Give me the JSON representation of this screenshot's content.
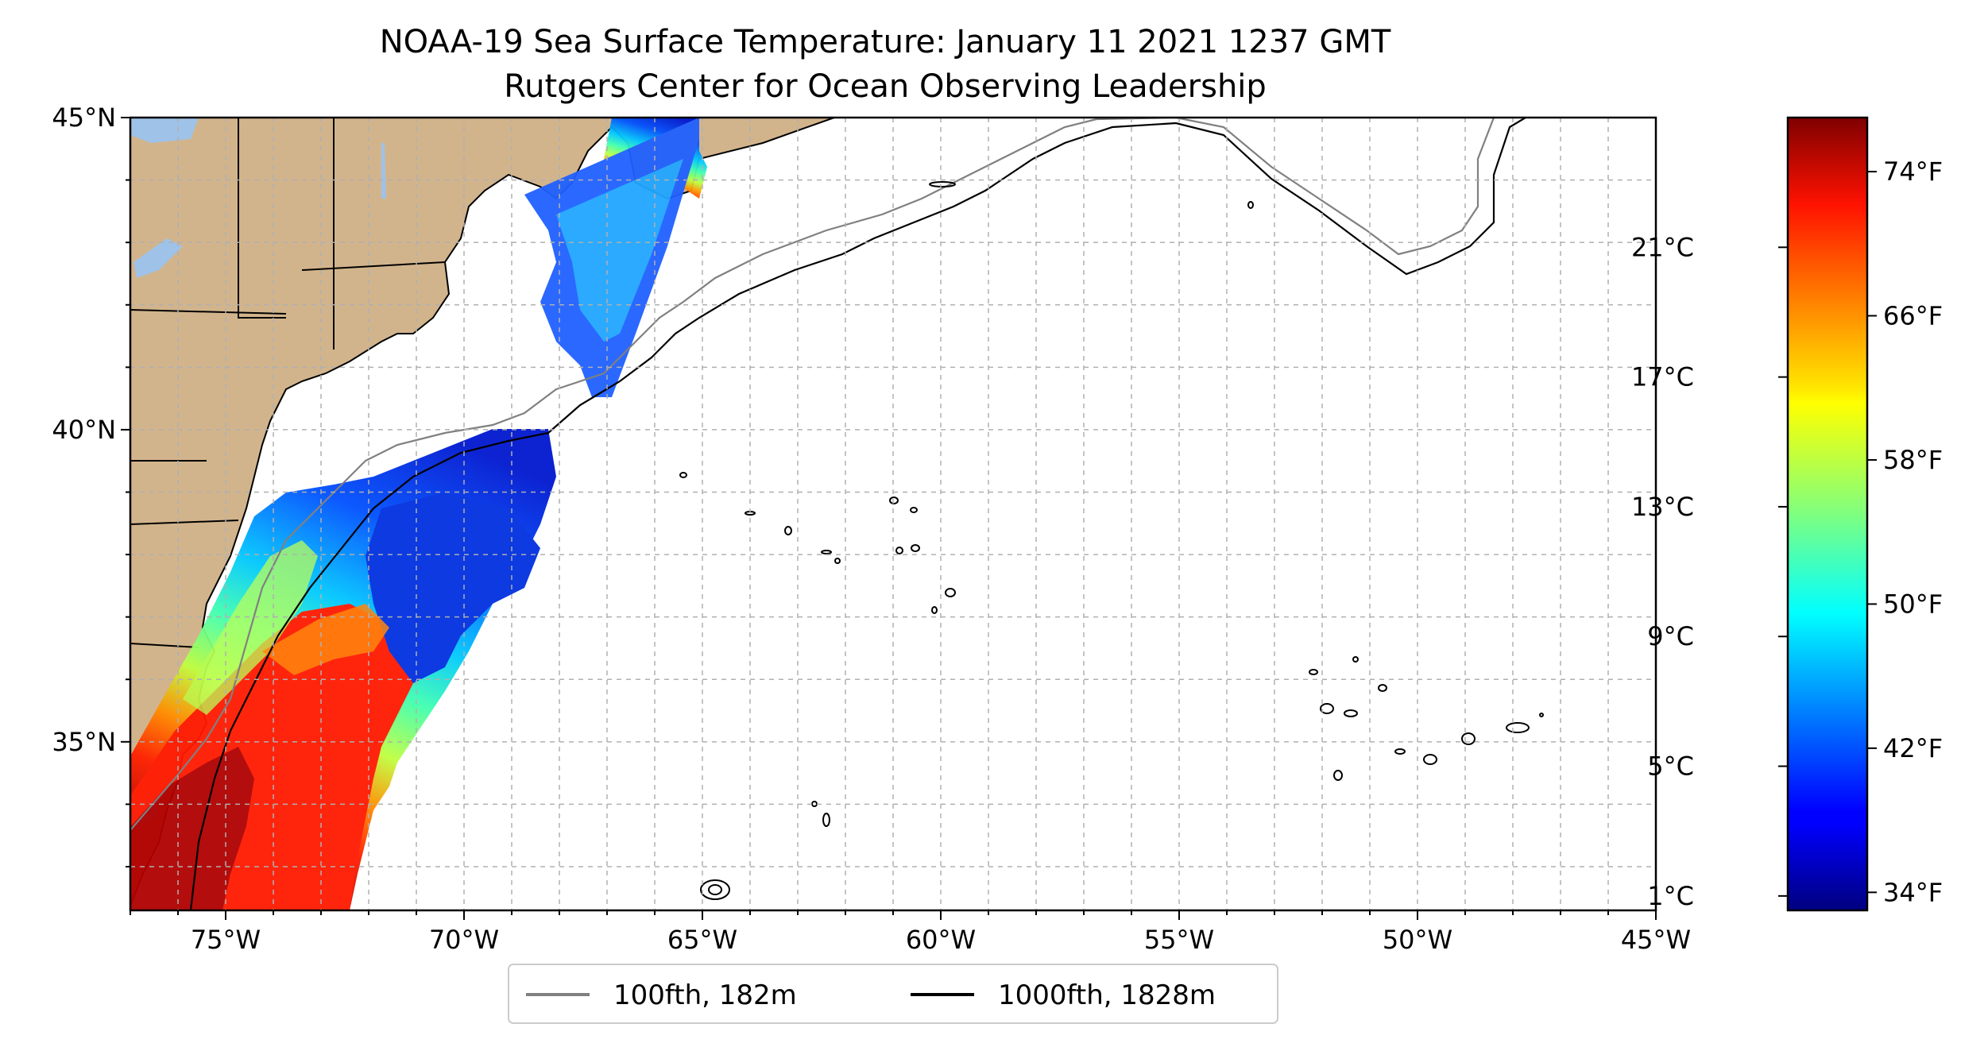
{
  "title": {
    "line1": "NOAA-19 Sea Surface Temperature: January 11 2021 1237 GMT",
    "line2": "Rutgers Center for Ocean Observing Leadership"
  },
  "map": {
    "extent": {
      "lon_min": -77,
      "lon_max": -45,
      "lat_min": 32.3,
      "lat_max": 45
    },
    "lat_ticks": [
      {
        "value": 45,
        "label": "45°N"
      },
      {
        "value": 40,
        "label": "40°N"
      },
      {
        "value": 35,
        "label": "35°N"
      }
    ],
    "lon_ticks": [
      {
        "value": -75,
        "label": "75°W"
      },
      {
        "value": -70,
        "label": "70°W"
      },
      {
        "value": -65,
        "label": "65°W"
      },
      {
        "value": -60,
        "label": "60°W"
      },
      {
        "value": -55,
        "label": "55°W"
      },
      {
        "value": -50,
        "label": "50°W"
      },
      {
        "value": -45,
        "label": "45°W"
      }
    ],
    "gridlines": "dashed, every 1 degree",
    "land_color": "#d2b48c",
    "lake_color": "#9fc2e8"
  },
  "legend": {
    "placement": "bottom-center",
    "items": [
      {
        "label": "100fth, 182m",
        "color": "#808080"
      },
      {
        "label": "1000fth, 1828m",
        "color": "#000000"
      }
    ]
  },
  "colorbar": {
    "colormap": "jet",
    "range_f": [
      33,
      77
    ],
    "celsius_ticks": [
      {
        "value": 1,
        "label": "1°C"
      },
      {
        "value": 5,
        "label": "5°C"
      },
      {
        "value": 9,
        "label": "9°C"
      },
      {
        "value": 13,
        "label": "13°C"
      },
      {
        "value": 17,
        "label": "17°C"
      },
      {
        "value": 21,
        "label": "21°C"
      }
    ],
    "fahrenheit_ticks": [
      {
        "value": 34,
        "label": "34°F"
      },
      {
        "value": 42,
        "label": "42°F"
      },
      {
        "value": 50,
        "label": "50°F"
      },
      {
        "value": 58,
        "label": "58°F"
      },
      {
        "value": 66,
        "label": "66°F"
      },
      {
        "value": 74,
        "label": "74°F"
      }
    ]
  }
}
